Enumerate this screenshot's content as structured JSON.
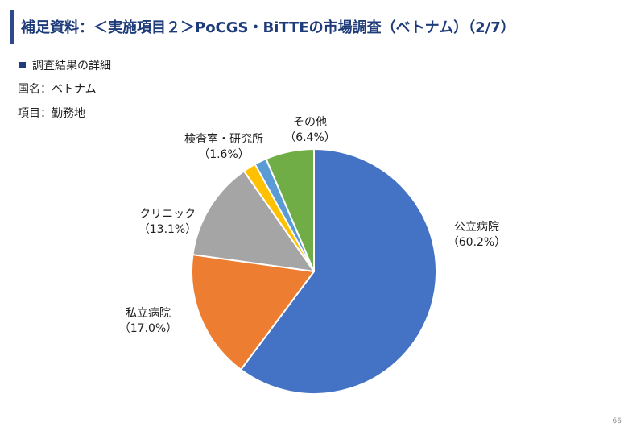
{
  "title": "補足資料：＜実施項目２＞PoCGS・BiTTEの市場調査（ベトナム）（2/7）",
  "section_heading": "調査結果の詳細",
  "country_line": "国名：ベトナム",
  "item_line": "項目：勤務地",
  "page_number": "66",
  "chart_data": {
    "type": "pie",
    "start_angle_deg": 0,
    "direction": "clockwise",
    "slices": [
      {
        "name": "公立病院",
        "value": 60.2,
        "value_label": "（60.2%）",
        "color": "#4472c4"
      },
      {
        "name": "私立病院",
        "value": 17.0,
        "value_label": "（17.0%）",
        "color": "#ed7d31"
      },
      {
        "name": "クリニック",
        "value": 13.1,
        "value_label": "（13.1%）",
        "color": "#a5a5a5"
      },
      {
        "name": "",
        "value": 1.7,
        "value_label": "",
        "color": "#ffc000"
      },
      {
        "name": "検査室・研究所",
        "value": 1.6,
        "value_label": "（1.6%）",
        "color": "#5b9bd5"
      },
      {
        "name": "その他",
        "value": 6.4,
        "value_label": "（6.4%）",
        "color": "#70ad47"
      }
    ]
  }
}
